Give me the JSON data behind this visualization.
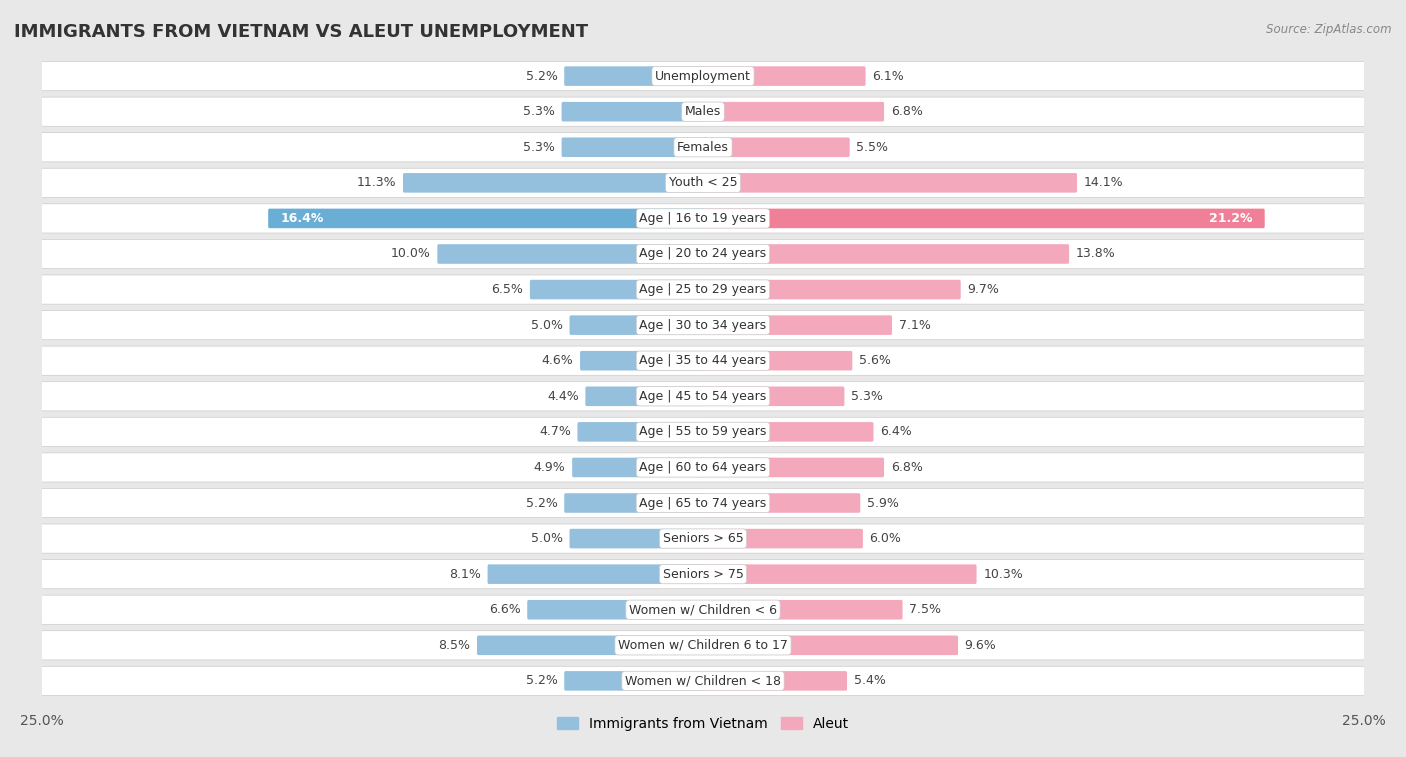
{
  "title": "IMMIGRANTS FROM VIETNAM VS ALEUT UNEMPLOYMENT",
  "source": "Source: ZipAtlas.com",
  "categories": [
    "Unemployment",
    "Males",
    "Females",
    "Youth < 25",
    "Age | 16 to 19 years",
    "Age | 20 to 24 years",
    "Age | 25 to 29 years",
    "Age | 30 to 34 years",
    "Age | 35 to 44 years",
    "Age | 45 to 54 years",
    "Age | 55 to 59 years",
    "Age | 60 to 64 years",
    "Age | 65 to 74 years",
    "Seniors > 65",
    "Seniors > 75",
    "Women w/ Children < 6",
    "Women w/ Children 6 to 17",
    "Women w/ Children < 18"
  ],
  "vietnam_values": [
    5.2,
    5.3,
    5.3,
    11.3,
    16.4,
    10.0,
    6.5,
    5.0,
    4.6,
    4.4,
    4.7,
    4.9,
    5.2,
    5.0,
    8.1,
    6.6,
    8.5,
    5.2
  ],
  "aleut_values": [
    6.1,
    6.8,
    5.5,
    14.1,
    21.2,
    13.8,
    9.7,
    7.1,
    5.6,
    5.3,
    6.4,
    6.8,
    5.9,
    6.0,
    10.3,
    7.5,
    9.6,
    5.4
  ],
  "vietnam_color": "#94c0de",
  "aleut_color": "#f4a8bc",
  "vietnam_highlight_color": "#6aaed6",
  "aleut_highlight_color": "#f08098",
  "vietnam_label": "Immigrants from Vietnam",
  "aleut_label": "Aleut",
  "xlim": 25.0,
  "background_color": "#e8e8e8",
  "row_color": "#ffffff",
  "row_border_color": "#cccccc",
  "title_fontsize": 13,
  "tick_fontsize": 10,
  "label_fontsize": 9,
  "value_fontsize": 9
}
